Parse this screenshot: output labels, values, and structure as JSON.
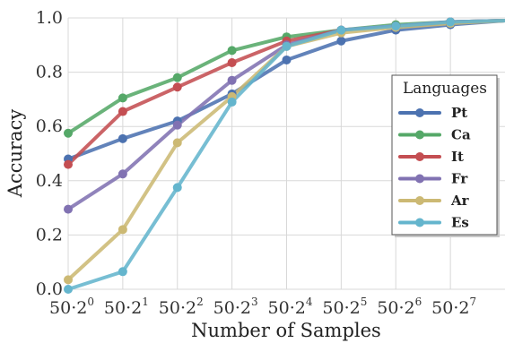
{
  "chart_data": {
    "type": "line",
    "title": "",
    "xlabel": "Number of Samples",
    "ylabel": "Accuracy",
    "x": [
      0,
      1,
      2,
      3,
      4,
      5,
      6,
      7,
      8
    ],
    "xlim": [
      0,
      8
    ],
    "ylim": [
      0.0,
      1.0
    ],
    "xticks": [
      {
        "base": "50·2",
        "exp": "0",
        "x": 0
      },
      {
        "base": "50·2",
        "exp": "1",
        "x": 1
      },
      {
        "base": "50·2",
        "exp": "2",
        "x": 2
      },
      {
        "base": "50·2",
        "exp": "3",
        "x": 3
      },
      {
        "base": "50·2",
        "exp": "4",
        "x": 4
      },
      {
        "base": "50·2",
        "exp": "5",
        "x": 5
      },
      {
        "base": "50·2",
        "exp": "6",
        "x": 6
      },
      {
        "base": "50·2",
        "exp": "7",
        "x": 7
      }
    ],
    "yticks": [
      {
        "label": "0.0",
        "value": 0.0
      },
      {
        "label": "0.2",
        "value": 0.2
      },
      {
        "label": "0.4",
        "value": 0.4
      },
      {
        "label": "0.6",
        "value": 0.6
      },
      {
        "label": "0.8",
        "value": 0.8
      },
      {
        "label": "1.0",
        "value": 1.0
      }
    ],
    "grid": true,
    "legend": {
      "title": "Languages",
      "placement": "center-right"
    },
    "series": [
      {
        "name": "Pt",
        "color": "#4c72b0",
        "values": [
          0.48,
          0.555,
          0.62,
          0.72,
          0.845,
          0.915,
          0.955,
          0.975,
          0.99
        ]
      },
      {
        "name": "Ca",
        "color": "#55a868",
        "values": [
          0.575,
          0.705,
          0.78,
          0.88,
          0.93,
          0.955,
          0.975,
          0.985,
          0.99
        ]
      },
      {
        "name": "It",
        "color": "#c44e52",
        "values": [
          0.46,
          0.655,
          0.745,
          0.835,
          0.915,
          0.955,
          0.97,
          0.985,
          0.99
        ]
      },
      {
        "name": "Fr",
        "color": "#8172b2",
        "values": [
          0.295,
          0.425,
          0.605,
          0.77,
          0.9,
          0.955,
          0.97,
          0.985,
          0.99
        ]
      },
      {
        "name": "Ar",
        "color": "#ccb974",
        "values": [
          0.035,
          0.22,
          0.54,
          0.71,
          0.895,
          0.945,
          0.965,
          0.98,
          0.99
        ]
      },
      {
        "name": "Es",
        "color": "#64b5cd",
        "values": [
          0.0,
          0.065,
          0.375,
          0.69,
          0.895,
          0.955,
          0.97,
          0.985,
          0.99
        ]
      }
    ]
  }
}
